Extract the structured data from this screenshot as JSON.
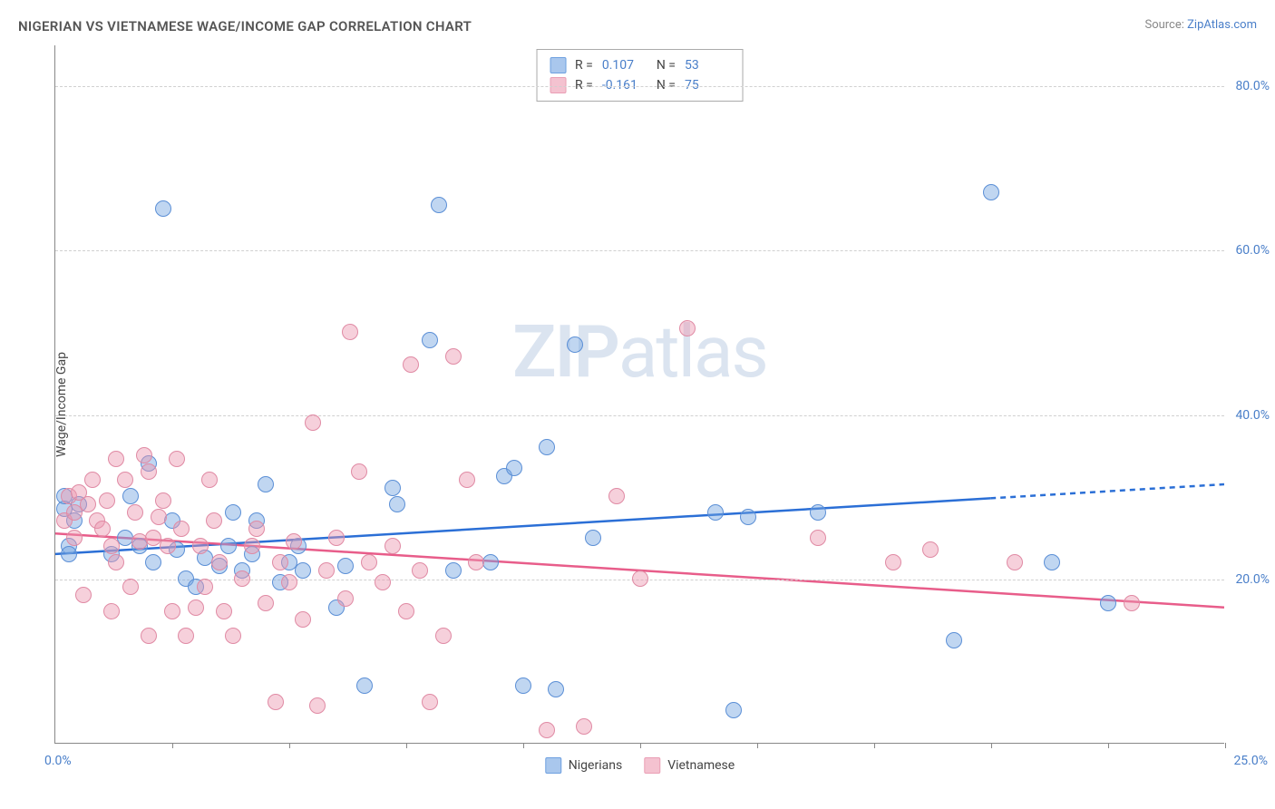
{
  "title": "NIGERIAN VS VIETNAMESE WAGE/INCOME GAP CORRELATION CHART",
  "source_prefix": "Source: ",
  "source_name": "ZipAtlas.com",
  "ylabel": "Wage/Income Gap",
  "watermark_bold": "ZIP",
  "watermark_rest": "atlas",
  "chart": {
    "type": "scatter",
    "xlim": [
      0,
      25
    ],
    "ylim": [
      0,
      85
    ],
    "x_tick_step": 2.5,
    "x_min_label": "0.0%",
    "x_max_label": "25.0%",
    "y_gridlines": [
      20,
      40,
      60,
      80
    ],
    "y_tick_labels": [
      "20.0%",
      "40.0%",
      "60.0%",
      "80.0%"
    ],
    "background_color": "#ffffff",
    "grid_color": "#d0d0d0",
    "axis_color": "#888888",
    "series": [
      {
        "name": "Nigerians",
        "color_fill": "rgba(115, 165, 225, 0.45)",
        "color_stroke": "#5b8fd6",
        "legend_swatch_fill": "#a9c7ed",
        "legend_swatch_stroke": "#6ea0e0",
        "trend_color": "#2b6fd6",
        "trend_width": 2.5,
        "R": "0.107",
        "N": "53",
        "trend_y_at_xmin": 23.0,
        "trend_y_at_xmax": 31.5,
        "trend_solid_end_x": 20.0,
        "points": [
          [
            0.2,
            28.5
          ],
          [
            0.2,
            30
          ],
          [
            0.3,
            24
          ],
          [
            0.3,
            23
          ],
          [
            0.4,
            27
          ],
          [
            0.5,
            29
          ],
          [
            1.2,
            23
          ],
          [
            1.5,
            25
          ],
          [
            1.6,
            30
          ],
          [
            1.8,
            24
          ],
          [
            2.0,
            34
          ],
          [
            2.1,
            22
          ],
          [
            2.3,
            65
          ],
          [
            2.5,
            27
          ],
          [
            2.6,
            23.5
          ],
          [
            2.8,
            20
          ],
          [
            3.0,
            19
          ],
          [
            3.2,
            22.5
          ],
          [
            3.5,
            21.5
          ],
          [
            3.7,
            24
          ],
          [
            3.8,
            28
          ],
          [
            4.0,
            21
          ],
          [
            4.2,
            23
          ],
          [
            4.3,
            27
          ],
          [
            4.5,
            31.5
          ],
          [
            4.8,
            19.5
          ],
          [
            5.0,
            22
          ],
          [
            5.2,
            24
          ],
          [
            5.3,
            21
          ],
          [
            6.0,
            16.5
          ],
          [
            6.2,
            21.5
          ],
          [
            6.6,
            7
          ],
          [
            7.2,
            31
          ],
          [
            7.3,
            29
          ],
          [
            8.0,
            49
          ],
          [
            8.2,
            65.5
          ],
          [
            8.5,
            21
          ],
          [
            9.3,
            22
          ],
          [
            9.6,
            32.5
          ],
          [
            9.8,
            33.5
          ],
          [
            10.0,
            7
          ],
          [
            10.5,
            36
          ],
          [
            10.7,
            6.5
          ],
          [
            11.1,
            48.5
          ],
          [
            11.5,
            25
          ],
          [
            14.1,
            28
          ],
          [
            14.5,
            4
          ],
          [
            14.8,
            27.5
          ],
          [
            16.3,
            28
          ],
          [
            19.2,
            12.5
          ],
          [
            20.0,
            67
          ],
          [
            21.3,
            22
          ],
          [
            22.5,
            17
          ]
        ]
      },
      {
        "name": "Vietnamese",
        "color_fill": "rgba(235, 150, 175, 0.45)",
        "color_stroke": "#e08aa4",
        "legend_swatch_fill": "#f4c2d0",
        "legend_swatch_stroke": "#ea9fb5",
        "trend_color": "#e85d8a",
        "trend_width": 2.5,
        "R": "-0.161",
        "N": "75",
        "trend_y_at_xmin": 25.5,
        "trend_y_at_xmax": 16.5,
        "trend_solid_end_x": 25.0,
        "points": [
          [
            0.2,
            27
          ],
          [
            0.3,
            30
          ],
          [
            0.4,
            25
          ],
          [
            0.4,
            28
          ],
          [
            0.5,
            30.5
          ],
          [
            0.6,
            18
          ],
          [
            0.7,
            29
          ],
          [
            0.8,
            32
          ],
          [
            0.9,
            27
          ],
          [
            1.0,
            26
          ],
          [
            1.1,
            29.5
          ],
          [
            1.2,
            24
          ],
          [
            1.2,
            16
          ],
          [
            1.3,
            22
          ],
          [
            1.3,
            34.5
          ],
          [
            1.5,
            32
          ],
          [
            1.6,
            19
          ],
          [
            1.7,
            28
          ],
          [
            1.8,
            24.5
          ],
          [
            1.9,
            35
          ],
          [
            2.0,
            33
          ],
          [
            2.0,
            13
          ],
          [
            2.1,
            25
          ],
          [
            2.2,
            27.5
          ],
          [
            2.3,
            29.5
          ],
          [
            2.4,
            24
          ],
          [
            2.5,
            16
          ],
          [
            2.6,
            34.5
          ],
          [
            2.7,
            26
          ],
          [
            2.8,
            13
          ],
          [
            3.0,
            16.5
          ],
          [
            3.1,
            24
          ],
          [
            3.2,
            19
          ],
          [
            3.3,
            32
          ],
          [
            3.4,
            27
          ],
          [
            3.5,
            22
          ],
          [
            3.6,
            16
          ],
          [
            3.8,
            13
          ],
          [
            4.0,
            20
          ],
          [
            4.2,
            24
          ],
          [
            4.3,
            26
          ],
          [
            4.5,
            17
          ],
          [
            4.7,
            5
          ],
          [
            4.8,
            22
          ],
          [
            5.0,
            19.5
          ],
          [
            5.1,
            24.5
          ],
          [
            5.3,
            15
          ],
          [
            5.5,
            39
          ],
          [
            5.6,
            4.5
          ],
          [
            5.8,
            21
          ],
          [
            6.0,
            25
          ],
          [
            6.2,
            17.5
          ],
          [
            6.3,
            50
          ],
          [
            6.5,
            33
          ],
          [
            6.7,
            22
          ],
          [
            7.0,
            19.5
          ],
          [
            7.2,
            24
          ],
          [
            7.5,
            16
          ],
          [
            7.6,
            46
          ],
          [
            7.8,
            21
          ],
          [
            8.0,
            5
          ],
          [
            8.3,
            13
          ],
          [
            8.5,
            47
          ],
          [
            8.8,
            32
          ],
          [
            9.0,
            22
          ],
          [
            10.5,
            1.5
          ],
          [
            11.3,
            2
          ],
          [
            12.0,
            30
          ],
          [
            12.5,
            20
          ],
          [
            13.5,
            50.5
          ],
          [
            16.3,
            25
          ],
          [
            17.9,
            22
          ],
          [
            18.7,
            23.5
          ],
          [
            20.5,
            22
          ],
          [
            23.0,
            17
          ]
        ]
      }
    ],
    "legend_top": {
      "r_label": "R =",
      "n_label": "N ="
    },
    "legend_bottom": {
      "items": [
        "Nigerians",
        "Vietnamese"
      ]
    }
  }
}
